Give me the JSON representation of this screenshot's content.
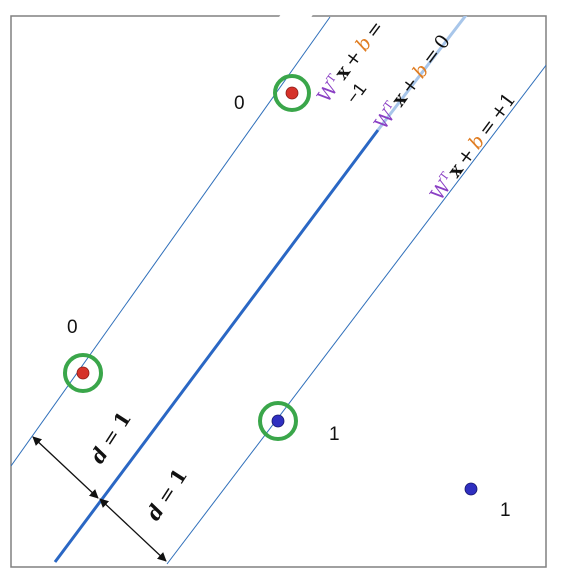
{
  "colors": {
    "frame": "#808080",
    "margin_line": "#2f6fba",
    "boundary_line": "#2a67c4",
    "class0_point": "#d6322a",
    "class1_point": "#2f2fc0",
    "support_ring": "#3aa64a",
    "w_color": "#8a3fc4",
    "b_color": "#e07d22",
    "text": "#111111"
  },
  "lines": {
    "negative_margin": {
      "label_w": "W",
      "label_sup": "T",
      "label_x": "x",
      "label_plus": "+",
      "label_b": "b",
      "label_eq": "=",
      "label_rhs": "−1"
    },
    "decision_boundary": {
      "label_w": "W",
      "label_sup": "T",
      "label_x": "x",
      "label_plus": "+",
      "label_b": "b",
      "label_eq": "=",
      "label_rhs": "0"
    },
    "positive_margin": {
      "label_w": "W",
      "label_sup": "T",
      "label_x": "x",
      "label_plus": "+",
      "label_b": "b",
      "label_eq": "=",
      "label_rhs": "+1"
    }
  },
  "points": [
    {
      "class_label": "0",
      "support_vector": true
    },
    {
      "class_label": "0",
      "support_vector": true
    },
    {
      "class_label": "1",
      "support_vector": true
    },
    {
      "class_label": "1",
      "support_vector": false
    }
  ],
  "distances": {
    "upper": {
      "var": "d",
      "eq": "=",
      "val": "1"
    },
    "lower": {
      "var": "d",
      "eq": "=",
      "val": "1"
    }
  }
}
